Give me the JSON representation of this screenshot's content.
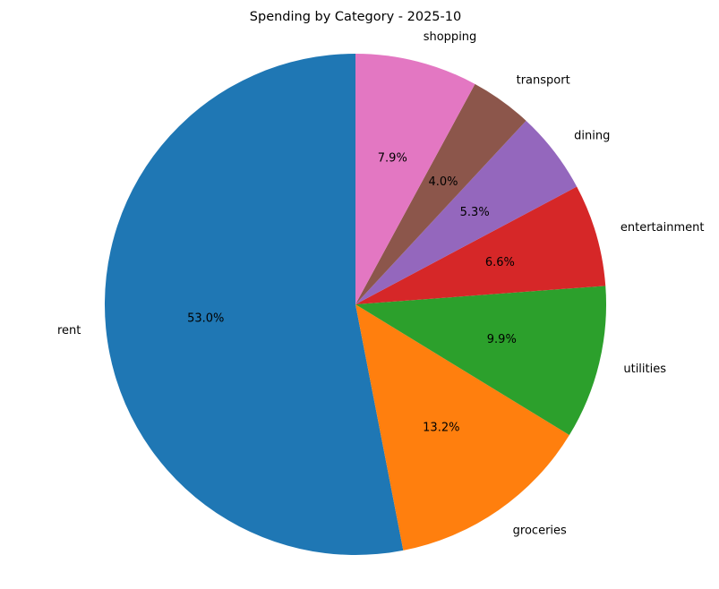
{
  "chart_data": {
    "type": "pie",
    "title": "Spending by Category - 2025-10",
    "start_angle_deg": 90,
    "direction": "counterclockwise",
    "slices": [
      {
        "label": "rent",
        "percent": 53.0,
        "pct_text": "53.0%",
        "color": "#1f77b4"
      },
      {
        "label": "groceries",
        "percent": 13.2,
        "pct_text": "13.2%",
        "color": "#ff7f0e"
      },
      {
        "label": "utilities",
        "percent": 9.9,
        "pct_text": "9.9%",
        "color": "#2ca02c"
      },
      {
        "label": "entertainment",
        "percent": 6.6,
        "pct_text": "6.6%",
        "color": "#d62728"
      },
      {
        "label": "dining",
        "percent": 5.3,
        "pct_text": "5.3%",
        "color": "#9467bd"
      },
      {
        "label": "transport",
        "percent": 4.0,
        "pct_text": "4.0%",
        "color": "#8c564b"
      },
      {
        "label": "shopping",
        "percent": 7.9,
        "pct_text": "7.9%",
        "color": "#e377c2"
      }
    ]
  }
}
